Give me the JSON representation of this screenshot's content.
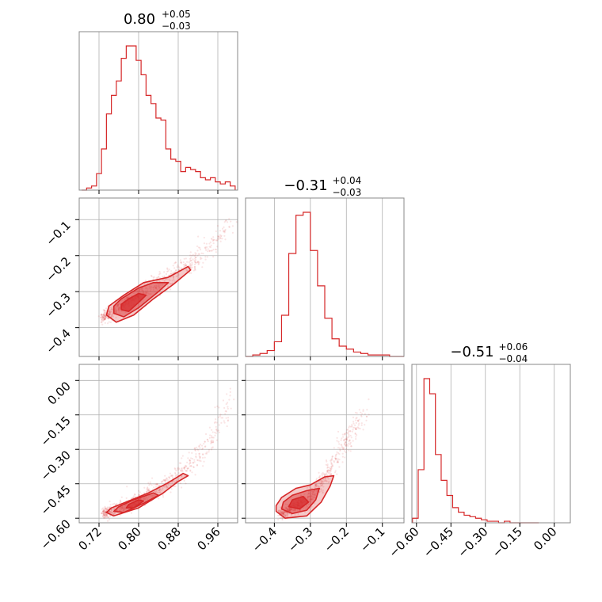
{
  "chart_data": {
    "type": "corner",
    "color": "#d62728",
    "diagonal": [
      {
        "title": {
          "median": "0.80",
          "plus": "+0.05",
          "minus": "−0.03"
        },
        "range": [
          0.68,
          1.0
        ],
        "bins": [
          0.69,
          0.7,
          0.71,
          0.72,
          0.73,
          0.74,
          0.75,
          0.76,
          0.77,
          0.78,
          0.79,
          0.8,
          0.81,
          0.82,
          0.83,
          0.84,
          0.85,
          0.86,
          0.87,
          0.88,
          0.89,
          0.9,
          0.91,
          0.92,
          0.93,
          0.94,
          0.95,
          0.96,
          0.97,
          0.98,
          0.99
        ],
        "counts": [
          0,
          1,
          2,
          8,
          20,
          37,
          46,
          53,
          64,
          70,
          70,
          63,
          56,
          46,
          42,
          35,
          34,
          20,
          15,
          14,
          9,
          11,
          10,
          9,
          6,
          5,
          6,
          4,
          3,
          4,
          2
        ]
      },
      {
        "title": {
          "median": "−0.31",
          "plus": "+0.04",
          "minus": "−0.03"
        },
        "range": [
          -0.48,
          -0.04
        ],
        "bins": [
          -0.47,
          -0.45,
          -0.43,
          -0.41,
          -0.39,
          -0.37,
          -0.35,
          -0.33,
          -0.31,
          -0.29,
          -0.27,
          -0.25,
          -0.23,
          -0.21,
          -0.19,
          -0.17,
          -0.15,
          -0.13,
          -0.11,
          -0.09,
          -0.07,
          -0.05
        ],
        "counts": [
          0,
          1,
          2,
          4,
          10,
          28,
          70,
          96,
          98,
          72,
          48,
          26,
          12,
          7,
          5,
          3,
          2,
          1,
          1,
          1,
          0,
          0
        ]
      },
      {
        "title": {
          "median": "−0.51",
          "plus": "+0.06",
          "minus": "−0.04"
        },
        "range": [
          -0.62,
          0.07
        ],
        "bins": [
          -0.605,
          -0.58,
          -0.555,
          -0.53,
          -0.505,
          -0.48,
          -0.455,
          -0.43,
          -0.405,
          -0.38,
          -0.355,
          -0.33,
          -0.305,
          -0.28,
          -0.255,
          -0.23,
          -0.205,
          -0.18,
          -0.155,
          -0.13,
          -0.105,
          -0.08
        ],
        "counts": [
          3,
          35,
          95,
          85,
          45,
          28,
          18,
          10,
          7,
          5,
          4,
          3,
          2,
          1,
          1,
          0,
          1,
          0,
          0,
          0,
          0,
          0
        ]
      }
    ],
    "scatter_panels": [
      {
        "row": 1,
        "col": 0,
        "x_param": 0,
        "y_param": 1,
        "trend": [
          [
            0.73,
            -0.37
          ],
          [
            0.76,
            -0.345
          ],
          [
            0.79,
            -0.315
          ],
          [
            0.82,
            -0.29
          ],
          [
            0.85,
            -0.27
          ],
          [
            0.88,
            -0.245
          ],
          [
            0.91,
            -0.22
          ],
          [
            0.95,
            -0.17
          ],
          [
            0.99,
            -0.1
          ]
        ],
        "contours": [
          [
            [
              0.735,
              -0.365
            ],
            [
              0.755,
              -0.385
            ],
            [
              0.79,
              -0.365
            ],
            [
              0.83,
              -0.32
            ],
            [
              0.87,
              -0.28
            ],
            [
              0.905,
              -0.24
            ],
            [
              0.9,
              -0.23
            ],
            [
              0.86,
              -0.26
            ],
            [
              0.81,
              -0.275
            ],
            [
              0.77,
              -0.31
            ],
            [
              0.74,
              -0.34
            ]
          ],
          [
            [
              0.75,
              -0.36
            ],
            [
              0.77,
              -0.37
            ],
            [
              0.8,
              -0.345
            ],
            [
              0.84,
              -0.3
            ],
            [
              0.86,
              -0.275
            ],
            [
              0.83,
              -0.275
            ],
            [
              0.8,
              -0.29
            ],
            [
              0.765,
              -0.32
            ],
            [
              0.75,
              -0.34
            ]
          ],
          [
            [
              0.765,
              -0.35
            ],
            [
              0.78,
              -0.355
            ],
            [
              0.8,
              -0.33
            ],
            [
              0.815,
              -0.31
            ],
            [
              0.8,
              -0.305
            ],
            [
              0.78,
              -0.32
            ],
            [
              0.765,
              -0.335
            ]
          ]
        ]
      },
      {
        "row": 2,
        "col": 0,
        "x_param": 0,
        "y_param": 2,
        "trend": [
          [
            0.73,
            -0.58
          ],
          [
            0.77,
            -0.55
          ],
          [
            0.8,
            -0.52
          ],
          [
            0.83,
            -0.48
          ],
          [
            0.86,
            -0.44
          ],
          [
            0.89,
            -0.39
          ],
          [
            0.92,
            -0.33
          ],
          [
            0.95,
            -0.24
          ],
          [
            0.99,
            -0.05
          ]
        ],
        "contours": [
          [
            [
              0.735,
              -0.575
            ],
            [
              0.75,
              -0.59
            ],
            [
              0.8,
              -0.555
            ],
            [
              0.85,
              -0.49
            ],
            [
              0.88,
              -0.44
            ],
            [
              0.9,
              -0.415
            ],
            [
              0.89,
              -0.405
            ],
            [
              0.86,
              -0.445
            ],
            [
              0.82,
              -0.49
            ],
            [
              0.78,
              -0.525
            ],
            [
              0.745,
              -0.555
            ]
          ],
          [
            [
              0.75,
              -0.57
            ],
            [
              0.77,
              -0.575
            ],
            [
              0.81,
              -0.535
            ],
            [
              0.84,
              -0.5
            ],
            [
              0.83,
              -0.49
            ],
            [
              0.79,
              -0.52
            ],
            [
              0.76,
              -0.55
            ]
          ],
          [
            [
              0.775,
              -0.555
            ],
            [
              0.79,
              -0.555
            ],
            [
              0.81,
              -0.525
            ],
            [
              0.8,
              -0.52
            ],
            [
              0.78,
              -0.54
            ]
          ]
        ]
      },
      {
        "row": 2,
        "col": 1,
        "x_param": 1,
        "y_param": 2,
        "trend": [
          [
            -0.38,
            -0.58
          ],
          [
            -0.34,
            -0.55
          ],
          [
            -0.31,
            -0.52
          ],
          [
            -0.28,
            -0.47
          ],
          [
            -0.25,
            -0.4
          ],
          [
            -0.22,
            -0.32
          ],
          [
            -0.19,
            -0.24
          ],
          [
            -0.15,
            -0.14
          ]
        ],
        "contours": [
          [
            [
              -0.395,
              -0.57
            ],
            [
              -0.37,
              -0.6
            ],
            [
              -0.31,
              -0.59
            ],
            [
              -0.27,
              -0.53
            ],
            [
              -0.245,
              -0.46
            ],
            [
              -0.235,
              -0.415
            ],
            [
              -0.26,
              -0.42
            ],
            [
              -0.3,
              -0.455
            ],
            [
              -0.34,
              -0.47
            ],
            [
              -0.38,
              -0.51
            ],
            [
              -0.395,
              -0.545
            ]
          ],
          [
            [
              -0.38,
              -0.56
            ],
            [
              -0.35,
              -0.58
            ],
            [
              -0.31,
              -0.565
            ],
            [
              -0.285,
              -0.52
            ],
            [
              -0.275,
              -0.47
            ],
            [
              -0.31,
              -0.48
            ],
            [
              -0.35,
              -0.5
            ],
            [
              -0.375,
              -0.53
            ]
          ],
          [
            [
              -0.36,
              -0.55
            ],
            [
              -0.33,
              -0.56
            ],
            [
              -0.305,
              -0.53
            ],
            [
              -0.32,
              -0.505
            ],
            [
              -0.35,
              -0.52
            ]
          ]
        ]
      }
    ],
    "x_axes": [
      {
        "ticks": [
          0.72,
          0.8,
          0.88,
          0.96
        ],
        "labels": [
          "0.72",
          "0.80",
          "0.88",
          "0.96"
        ]
      },
      {
        "ticks": [
          -0.4,
          -0.3,
          -0.2,
          -0.1
        ],
        "labels": [
          "−0.4",
          "−0.3",
          "−0.2",
          "−0.1"
        ]
      },
      {
        "ticks": [
          -0.6,
          -0.45,
          -0.3,
          -0.15,
          0.0
        ],
        "labels": [
          "−0.60",
          "−0.45",
          "−0.30",
          "−0.15",
          "0.00"
        ]
      }
    ],
    "y_axes": [
      null,
      {
        "ticks": [
          -0.4,
          -0.3,
          -0.2,
          -0.1
        ],
        "labels": [
          "−0.4",
          "−0.3",
          "−0.2",
          "−0.1"
        ]
      },
      {
        "ticks": [
          -0.6,
          -0.45,
          -0.3,
          -0.15,
          0.0
        ],
        "labels": [
          "−0.60",
          "−0.45",
          "−0.30",
          "−0.15",
          "0.00"
        ]
      }
    ]
  }
}
